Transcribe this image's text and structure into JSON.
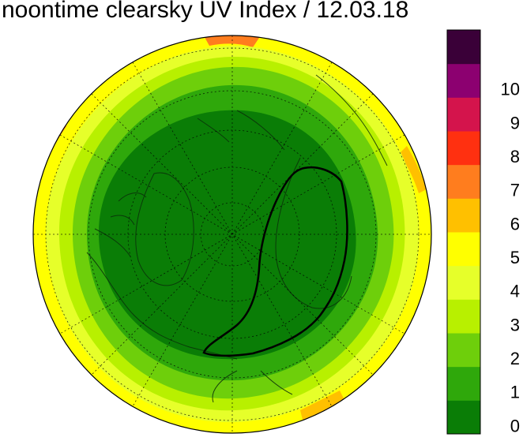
{
  "title": "noontime clearsky UV Index / 12.03.18",
  "colors": {
    "0": "#0a7d06",
    "1": "#2fa80b",
    "2": "#6ecf0b",
    "3": "#b8f000",
    "4": "#e6ff2a",
    "5": "#ffff00",
    "6": "#ffc000",
    "7": "#ff7d1e",
    "8": "#ff3010",
    "9": "#d4144c",
    "10": "#8c0070",
    "11": "#3a0038"
  },
  "colorbar": {
    "labels": [
      "0",
      "1",
      "2",
      "3",
      "4",
      "5",
      "6",
      "7",
      "8",
      "9",
      "10"
    ],
    "bands": [
      "#0a7d06",
      "#2fa80b",
      "#6ecf0b",
      "#b8f000",
      "#e6ff2a",
      "#ffff00",
      "#ffc000",
      "#ff7d1e",
      "#ff3010",
      "#d4144c",
      "#8c0070",
      "#3a0038"
    ]
  },
  "map": {
    "projection": "north polar stereographic",
    "center": "north pole",
    "uv_rings": [
      {
        "uv_band": "0-1",
        "color": "#0a7d06"
      },
      {
        "uv_band": "1-2",
        "color": "#2fa80b"
      },
      {
        "uv_band": "2-3",
        "color": "#6ecf0b"
      },
      {
        "uv_band": "3-4",
        "color": "#b8f000"
      },
      {
        "uv_band": "4-5",
        "color": "#e6ff2a"
      },
      {
        "uv_band": "5-6",
        "color": "#ffff00"
      },
      {
        "uv_band": "6-7",
        "color": "#ffc000"
      }
    ],
    "contour": "ozone anomaly outline (black)"
  }
}
